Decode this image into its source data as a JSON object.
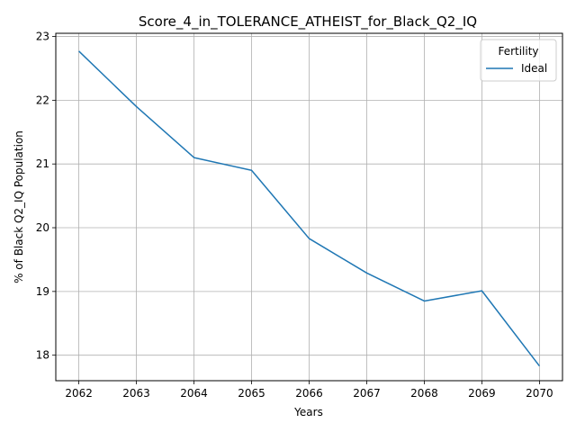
{
  "chart_data": {
    "type": "line",
    "title": "Score_4_in_TOLERANCE_ATHEIST_for_Black_Q2_IQ",
    "xlabel": "Years",
    "ylabel": "% of Black Q2_IQ Population",
    "x": [
      2062,
      2063,
      2064,
      2065,
      2066,
      2067,
      2068,
      2069,
      2070
    ],
    "x_ticks": [
      "2062",
      "2063",
      "2064",
      "2065",
      "2066",
      "2067",
      "2068",
      "2069",
      "2070"
    ],
    "y_ticks": [
      "18",
      "19",
      "20",
      "21",
      "22",
      "23"
    ],
    "xlim": [
      2061.6,
      2070.4
    ],
    "ylim": [
      17.6,
      23.05
    ],
    "grid": true,
    "legend": {
      "title": "Fertility",
      "placement": "top-right"
    },
    "series": [
      {
        "name": "Ideal",
        "color": "#1f77b4",
        "values": [
          22.77,
          21.9,
          21.1,
          20.9,
          19.83,
          19.29,
          18.85,
          19.01,
          17.83
        ]
      }
    ]
  }
}
